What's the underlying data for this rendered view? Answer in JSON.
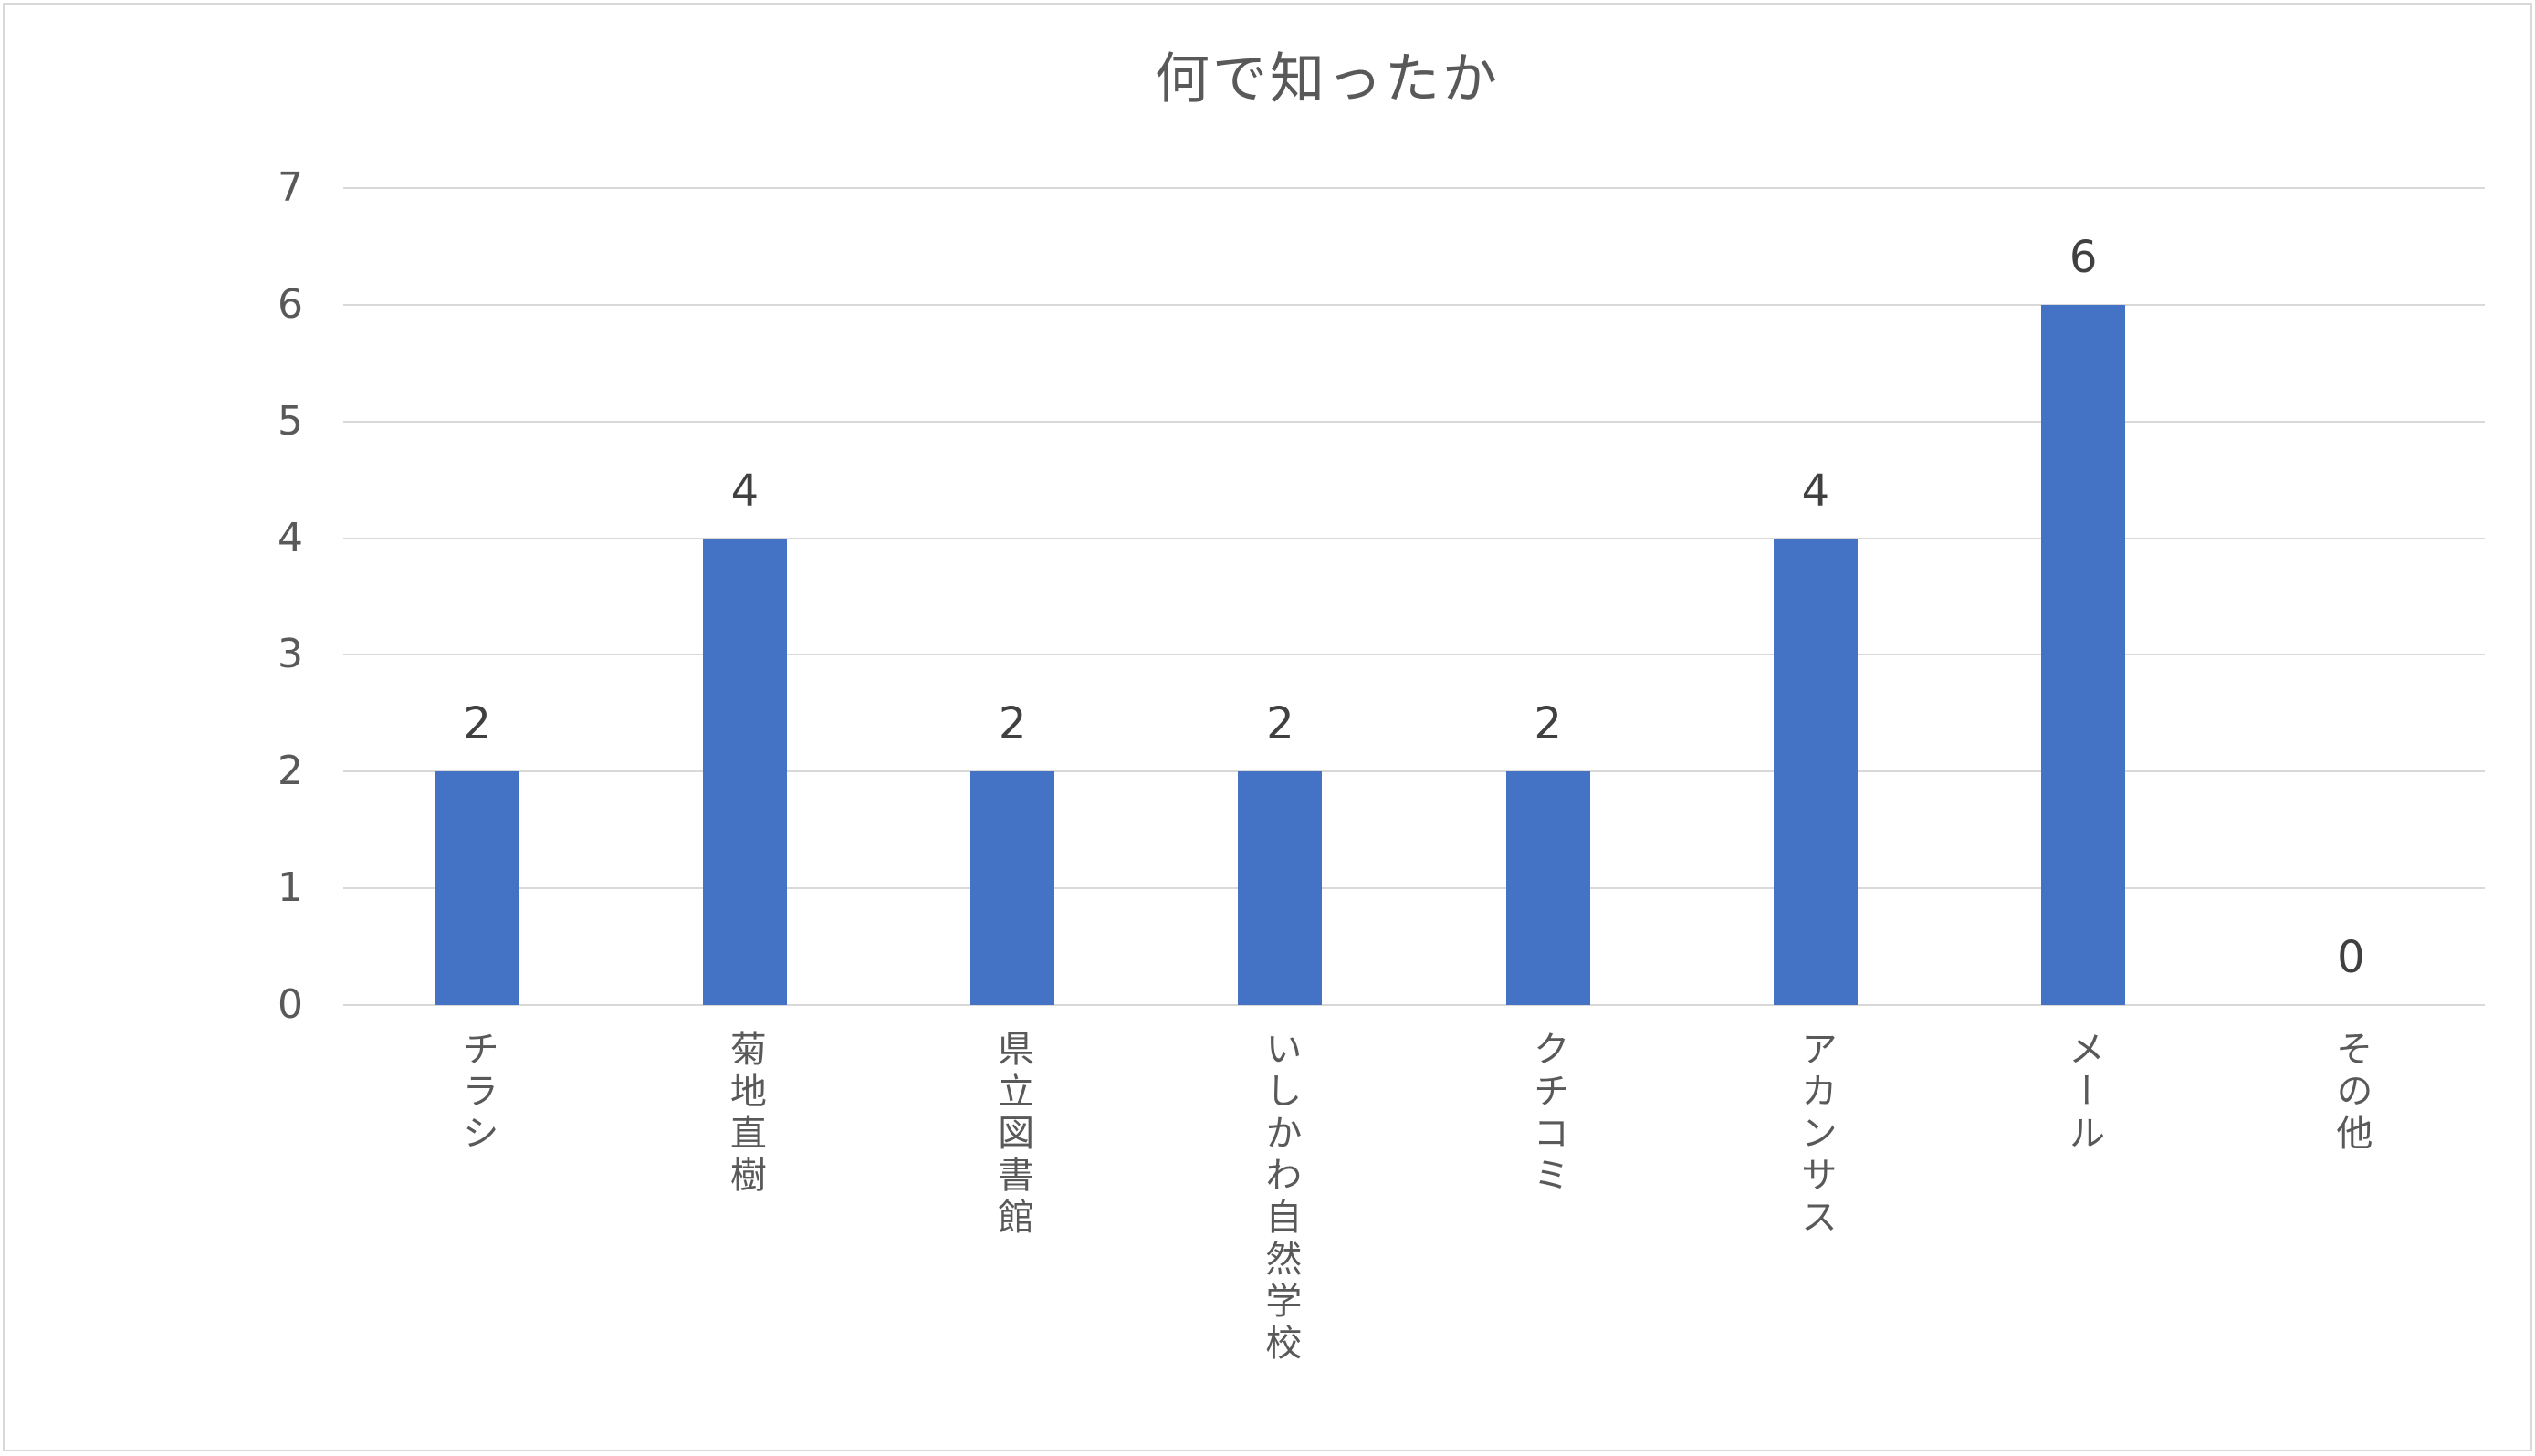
{
  "chart_data": {
    "type": "bar",
    "title": "何で知ったか",
    "categories": [
      "チラシ",
      "菊地直樹",
      "県立図書館",
      "いしかわ自然学校",
      "クチコミ",
      "アカンサス",
      "メール",
      "その他"
    ],
    "values": [
      2,
      4,
      2,
      2,
      2,
      4,
      6,
      0
    ],
    "ylim": [
      0,
      7
    ],
    "yticks": [
      0,
      1,
      2,
      3,
      4,
      5,
      6,
      7
    ],
    "grid": true,
    "colors": {
      "bar": "#4472C4",
      "grid": "#D9D9D9",
      "axis_text": "#595959",
      "data_label": "#404040",
      "border": "#D9D9D9"
    }
  }
}
